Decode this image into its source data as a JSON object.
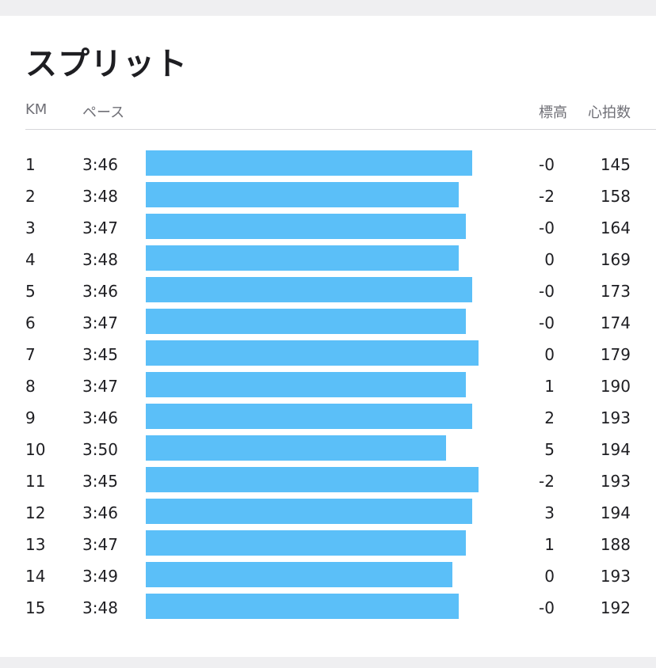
{
  "title": "スプリット",
  "headers": {
    "km": "KM",
    "pace": "ペース",
    "elevation": "標高",
    "heart_rate": "心拍数"
  },
  "style": {
    "bar_color": "#5bbff8"
  },
  "splits": [
    {
      "km": "1",
      "pace": "3:46",
      "pace_sec": 226,
      "elevation": "-0",
      "heart_rate": "145"
    },
    {
      "km": "2",
      "pace": "3:48",
      "pace_sec": 228,
      "elevation": "-2",
      "heart_rate": "158"
    },
    {
      "km": "3",
      "pace": "3:47",
      "pace_sec": 227,
      "elevation": "-0",
      "heart_rate": "164"
    },
    {
      "km": "4",
      "pace": "3:48",
      "pace_sec": 228,
      "elevation": "0",
      "heart_rate": "169"
    },
    {
      "km": "5",
      "pace": "3:46",
      "pace_sec": 226,
      "elevation": "-0",
      "heart_rate": "173"
    },
    {
      "km": "6",
      "pace": "3:47",
      "pace_sec": 227,
      "elevation": "-0",
      "heart_rate": "174"
    },
    {
      "km": "7",
      "pace": "3:45",
      "pace_sec": 225,
      "elevation": "0",
      "heart_rate": "179"
    },
    {
      "km": "8",
      "pace": "3:47",
      "pace_sec": 227,
      "elevation": "1",
      "heart_rate": "190"
    },
    {
      "km": "9",
      "pace": "3:46",
      "pace_sec": 226,
      "elevation": "2",
      "heart_rate": "193"
    },
    {
      "km": "10",
      "pace": "3:50",
      "pace_sec": 230,
      "elevation": "5",
      "heart_rate": "194"
    },
    {
      "km": "11",
      "pace": "3:45",
      "pace_sec": 225,
      "elevation": "-2",
      "heart_rate": "193"
    },
    {
      "km": "12",
      "pace": "3:46",
      "pace_sec": 226,
      "elevation": "3",
      "heart_rate": "194"
    },
    {
      "km": "13",
      "pace": "3:47",
      "pace_sec": 227,
      "elevation": "1",
      "heart_rate": "188"
    },
    {
      "km": "14",
      "pace": "3:49",
      "pace_sec": 229,
      "elevation": "0",
      "heart_rate": "193"
    },
    {
      "km": "15",
      "pace": "3:48",
      "pace_sec": 228,
      "elevation": "-0",
      "heart_rate": "192"
    }
  ]
}
